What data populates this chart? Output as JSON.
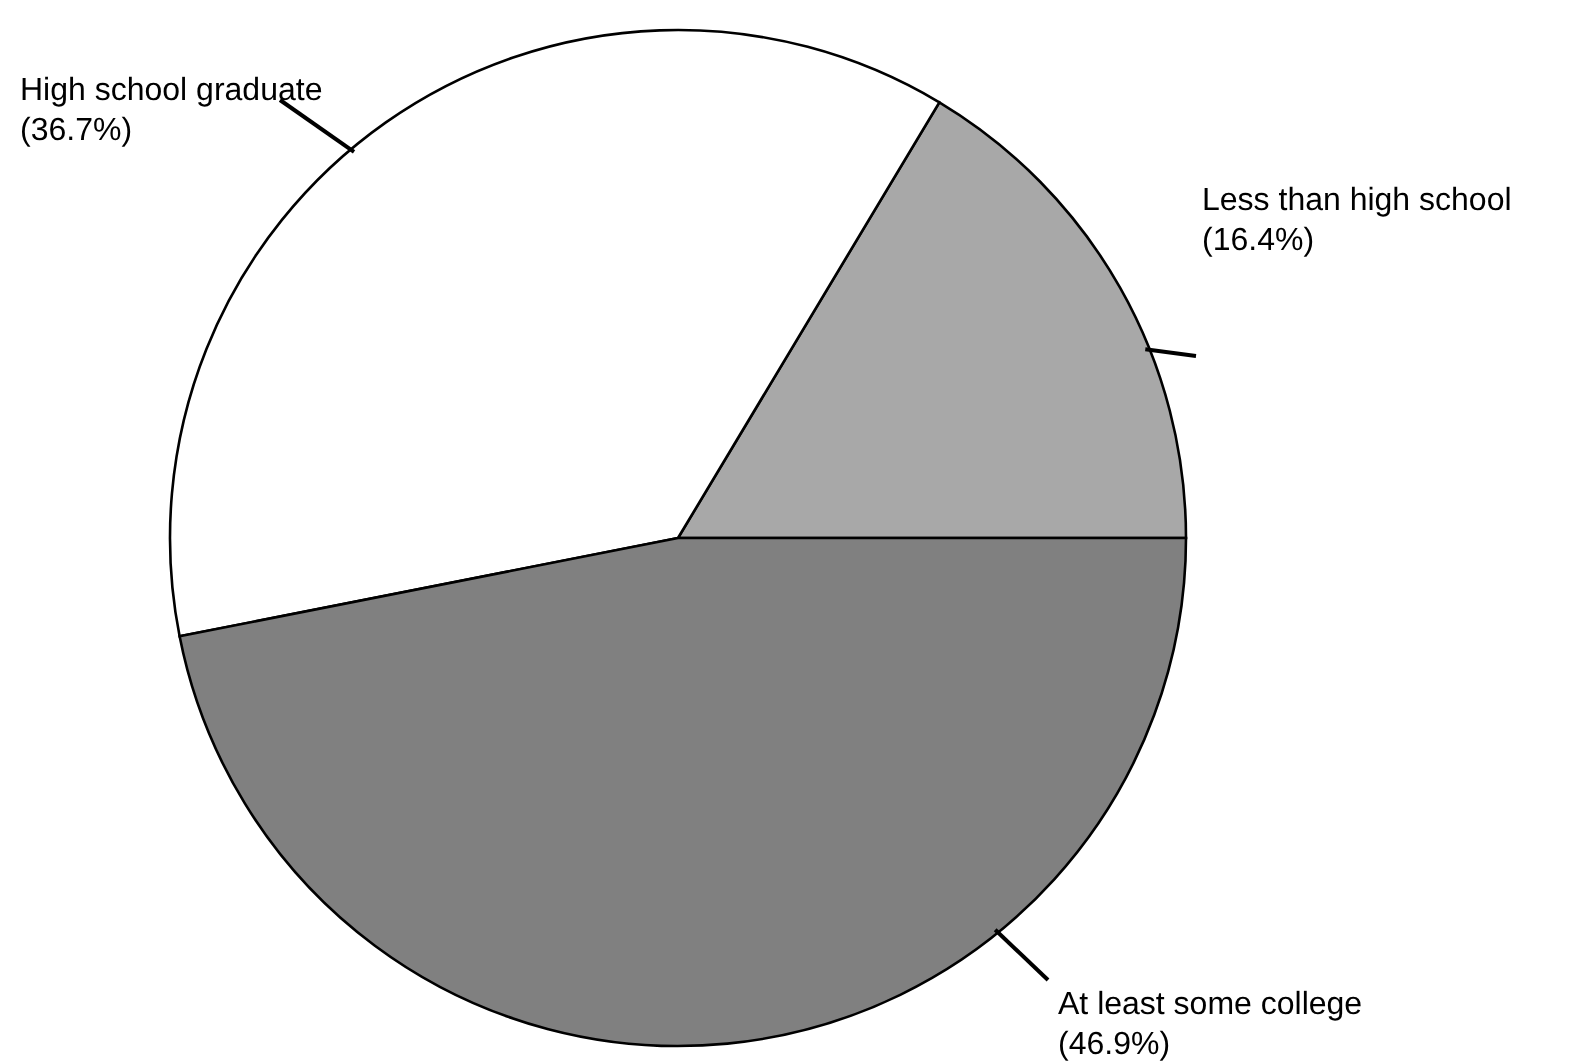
{
  "chart_data": {
    "type": "pie",
    "categories": [
      "Less than high school",
      "High school graduate",
      "At least some college"
    ],
    "values": [
      16.4,
      36.7,
      46.9
    ],
    "value_labels": [
      "(16.4%)",
      "(36.7%)",
      "(46.9%)"
    ],
    "colors": [
      "#a8a8a8",
      "#ffffff",
      "#808080"
    ]
  }
}
